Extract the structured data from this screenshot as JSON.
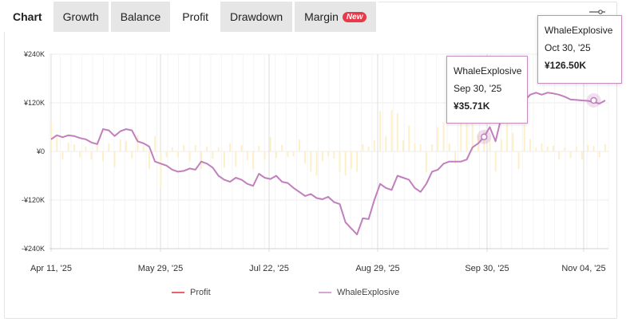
{
  "tabs": [
    {
      "label": "Chart",
      "name": "tab-chart"
    },
    {
      "label": "Growth",
      "name": "tab-growth"
    },
    {
      "label": "Balance",
      "name": "tab-balance"
    },
    {
      "label": "Profit",
      "name": "tab-profit",
      "active": true
    },
    {
      "label": "Drawdown",
      "name": "tab-drawdown"
    },
    {
      "label": "Margin",
      "name": "tab-margin",
      "badge": "New"
    }
  ],
  "settings_icon": "slider-settings-icon",
  "colors": {
    "bar": "#fdf0c8",
    "line": "#c27fbd",
    "profit_legend": "#e8636a",
    "grid": "#ececec",
    "axis_text": "#333333"
  },
  "legend": [
    {
      "label": "Profit",
      "color": "#e8636a"
    },
    {
      "label": "WhaleExplosive",
      "color": "#d5a6d3"
    }
  ],
  "tooltips": [
    {
      "series": "WhaleExplosive",
      "date": "Sep 30, '25",
      "value": "¥35.71K"
    },
    {
      "series": "WhaleExplosive",
      "date": "Oct 30, '25",
      "value": "¥126.50K"
    }
  ],
  "chart_data": {
    "type": "line",
    "x_ticks": [
      "Apr 11, '25",
      "May 29, '25",
      "Jul 22, '25",
      "Aug 29, '25",
      "Sep 30, '25",
      "Nov 04, '25"
    ],
    "y_ticks": [
      "¥240K",
      "¥120K",
      "¥0",
      "-¥120K",
      "-¥240K"
    ],
    "ylim": [
      -240,
      240
    ],
    "grid": true,
    "series": [
      {
        "name": "WhaleExplosive",
        "values": [
          30,
          40,
          35,
          40,
          38,
          33,
          30,
          22,
          18,
          55,
          52,
          38,
          50,
          55,
          52,
          25,
          20,
          12,
          -25,
          -30,
          -35,
          -45,
          -50,
          -48,
          -42,
          -45,
          -25,
          -30,
          -40,
          -60,
          -70,
          -75,
          -65,
          -70,
          -80,
          -85,
          -55,
          -65,
          -68,
          -60,
          -75,
          -78,
          -90,
          -100,
          -110,
          -105,
          -115,
          -118,
          -112,
          -125,
          -130,
          -175,
          -190,
          -205,
          -165,
          -167,
          -120,
          -80,
          -90,
          -95,
          -60,
          -65,
          -70,
          -90,
          -100,
          -80,
          -50,
          -45,
          -30,
          -25,
          -25,
          -25,
          -20,
          10,
          20,
          36,
          60,
          25,
          85,
          130,
          110,
          105,
          125,
          140,
          145,
          140,
          145,
          143,
          140,
          135,
          128,
          127,
          126,
          125,
          122,
          118,
          126
        ]
      },
      {
        "name": "Profit",
        "values": [
          72,
          40,
          -20,
          22,
          18,
          -15,
          12,
          -20,
          28,
          -24,
          20,
          -40,
          30,
          26,
          -18,
          40,
          14,
          -44,
          38,
          -88,
          -14,
          10,
          -14,
          15,
          -24,
          16,
          -44,
          12,
          -18,
          10,
          -40,
          20,
          -38,
          16,
          -22,
          -44,
          14,
          -20,
          36,
          -16,
          16,
          -14,
          -12,
          30,
          -30,
          -50,
          -60,
          -24,
          -12,
          -18,
          -50,
          -60,
          -42,
          -50,
          18,
          12,
          28,
          100,
          38,
          102,
          94,
          28,
          64,
          20,
          18,
          -50,
          18,
          60,
          72,
          20,
          -30,
          80,
          70,
          82,
          40,
          50,
          32,
          -50,
          30,
          86,
          46,
          -44,
          66,
          30,
          10,
          20,
          12,
          14,
          -20,
          10,
          -16,
          12,
          -20,
          16,
          14,
          -14,
          18
        ]
      }
    ]
  }
}
